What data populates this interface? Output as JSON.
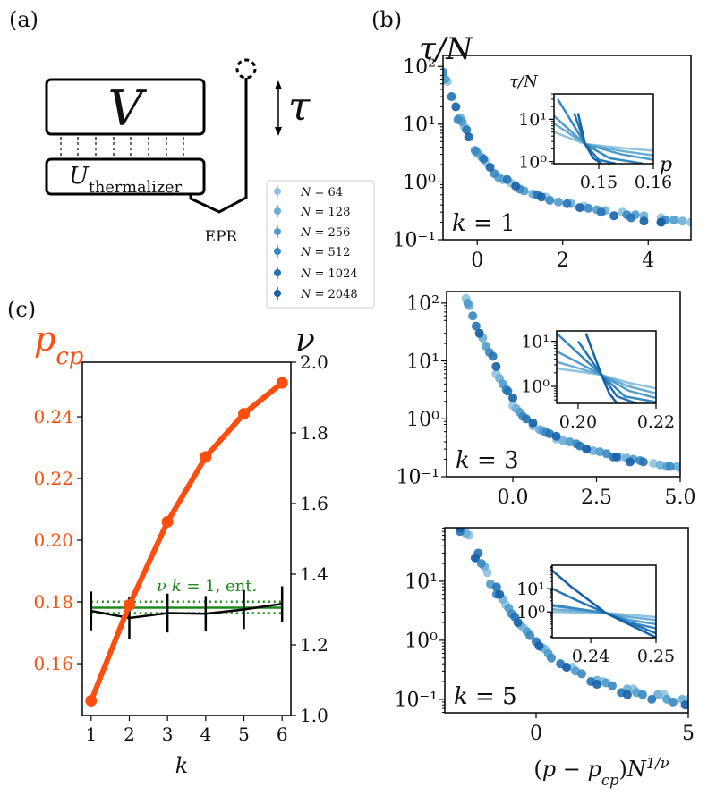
{
  "panel_labels": {
    "a": "(a)",
    "b": "(b)",
    "c": "(c)"
  },
  "diagram": {
    "V": "V",
    "U": [
      {
        "t": "U",
        "i": true
      },
      {
        "t": "thermalizer",
        "sub": true
      }
    ],
    "tau": "τ",
    "epr": "EPR"
  },
  "legend": [
    {
      "label": [
        {
          "t": "N",
          "i": true
        },
        {
          "t": " = 64"
        }
      ],
      "color": "#8fc2de"
    },
    {
      "label": [
        {
          "t": "N",
          "i": true
        },
        {
          "t": " = 128"
        }
      ],
      "color": "#6aaed6"
    },
    {
      "label": [
        {
          "t": "N",
          "i": true
        },
        {
          "t": " = 256"
        }
      ],
      "color": "#4f9bcb"
    },
    {
      "label": [
        {
          "t": "N",
          "i": true
        },
        {
          "t": " = 512"
        }
      ],
      "color": "#3787c0"
    },
    {
      "label": [
        {
          "t": "N",
          "i": true
        },
        {
          "t": " = 1024"
        }
      ],
      "color": "#2473b5"
    },
    {
      "label": [
        {
          "t": "N",
          "i": true
        },
        {
          "t": " = 2048"
        }
      ],
      "color": "#1561a9"
    }
  ],
  "chart_data": [
    {
      "type": "scatter",
      "panel": "b",
      "yscale": "log",
      "ylabel": [
        {
          "t": "τ/N",
          "i": true
        }
      ],
      "annotation": [
        {
          "t": "k",
          "i": true
        },
        {
          "t": " = 1"
        }
      ],
      "xlim": [
        -0.8,
        5.0
      ],
      "ylim": [
        0.1,
        155
      ],
      "xticks": [
        {
          "v": 0,
          "label": "0"
        },
        {
          "v": 2,
          "label": "2"
        },
        {
          "v": 4,
          "label": "4"
        }
      ],
      "yticks": [
        {
          "v": 100,
          "label": "10²"
        },
        {
          "v": 10,
          "label": "10¹"
        },
        {
          "v": 1,
          "label": "10⁰"
        },
        {
          "v": 0.1,
          "label": "10⁻¹"
        }
      ],
      "series": [
        {
          "x": [
            -0.7,
            -0.3,
            0.2,
            0.8,
            1.6,
            2.5,
            3.4,
            4.3,
            5.0
          ],
          "y": [
            55,
            9,
            2.2,
            0.95,
            0.55,
            0.38,
            0.3,
            0.24,
            0.2
          ]
        },
        {
          "x": [
            -0.8,
            -0.4,
            0.1,
            0.6,
            1.3,
            2.2,
            3.0,
            3.9,
            4.8
          ],
          "y": [
            70,
            13,
            2.7,
            1.1,
            0.62,
            0.42,
            0.32,
            0.26,
            0.21
          ]
        },
        {
          "x": [
            -0.75,
            -0.35,
            0.0,
            0.5,
            1.1,
            1.9,
            2.8,
            3.7,
            4.6
          ],
          "y": [
            60,
            11,
            3.2,
            1.2,
            0.7,
            0.45,
            0.33,
            0.27,
            0.22
          ]
        },
        {
          "x": [
            -0.8,
            -0.45,
            -0.05,
            0.4,
            1.0,
            1.7,
            2.6,
            3.5,
            4.4
          ],
          "y": [
            80,
            12,
            3.5,
            1.4,
            0.75,
            0.48,
            0.35,
            0.27,
            0.22
          ]
        },
        {
          "x": [
            -0.6,
            -0.25,
            0.15,
            0.7,
            1.4,
            2.1,
            2.9,
            3.6,
            4.3
          ],
          "y": [
            30,
            8,
            2.5,
            1.1,
            0.6,
            0.42,
            0.3,
            0.24,
            0.2
          ]
        },
        {
          "x": [
            -0.5,
            -0.2,
            0.3,
            0.9,
            1.5,
            2.4,
            3.2,
            3.9,
            4.3
          ],
          "y": [
            20,
            6,
            1.8,
            0.85,
            0.55,
            0.36,
            0.26,
            0.21,
            0.2
          ]
        }
      ]
    },
    {
      "type": "line",
      "panel": "b-inset",
      "yscale": "log",
      "ylabel": [
        {
          "t": "τ/N",
          "i": true
        }
      ],
      "xlabel": [
        {
          "t": "p",
          "i": true
        }
      ],
      "xlim": [
        0.1418,
        0.16
      ],
      "ylim": [
        0.89,
        40
      ],
      "xticks": [
        {
          "v": 0.15,
          "label": "0.15"
        },
        {
          "v": 0.16,
          "label": "0.16"
        }
      ],
      "yticks": [
        {
          "v": 10,
          "label": "10¹"
        },
        {
          "v": 1,
          "label": "10⁰"
        }
      ],
      "series": [
        {
          "x": [
            0.1418,
            0.1475,
            0.154,
            0.16
          ],
          "y": [
            5,
            2.6,
            2.1,
            1.8
          ]
        },
        {
          "x": [
            0.1418,
            0.1475,
            0.154,
            0.16
          ],
          "y": [
            8,
            2.6,
            1.8,
            1.4
          ]
        },
        {
          "x": [
            0.1418,
            0.1475,
            0.154,
            0.16
          ],
          "y": [
            12,
            2.6,
            1.5,
            1.1
          ]
        },
        {
          "x": [
            0.1425,
            0.1475,
            0.152,
            0.158
          ],
          "y": [
            30,
            2.6,
            1.2,
            0.9
          ]
        },
        {
          "x": [
            0.1455,
            0.1475,
            0.15,
            0.153
          ],
          "y": [
            14,
            2.6,
            1.1,
            0.9
          ]
        },
        {
          "x": [
            0.1462,
            0.1475,
            0.149,
            0.1505
          ],
          "y": [
            14,
            2.6,
            1.2,
            0.9
          ]
        }
      ]
    },
    {
      "type": "scatter",
      "panel": "b",
      "yscale": "log",
      "annotation": [
        {
          "t": "k",
          "i": true
        },
        {
          "t": " = 3"
        }
      ],
      "xlim": [
        -1.98,
        5.0
      ],
      "ylim": [
        0.1,
        158
      ],
      "xticks": [
        {
          "v": 0,
          "label": "0.0"
        },
        {
          "v": 2.5,
          "label": "2.5"
        },
        {
          "v": 5,
          "label": "5.0"
        }
      ],
      "yticks": [
        {
          "v": 100,
          "label": "10²"
        },
        {
          "v": 10,
          "label": "10¹"
        },
        {
          "v": 1,
          "label": "10⁰"
        },
        {
          "v": 0.1,
          "label": "10⁻¹"
        }
      ],
      "series": [
        {
          "x": [
            -1.4,
            -1.0,
            -0.5,
            0.0,
            0.6,
            1.3,
            2.2,
            3.2,
            4.2,
            5.0
          ],
          "y": [
            120,
            30,
            6,
            1.7,
            0.75,
            0.45,
            0.3,
            0.22,
            0.17,
            0.14
          ]
        },
        {
          "x": [
            -1.3,
            -0.9,
            -0.4,
            0.1,
            0.8,
            1.5,
            2.4,
            3.4,
            4.4,
            4.9
          ],
          "y": [
            90,
            25,
            5,
            1.5,
            0.65,
            0.42,
            0.28,
            0.21,
            0.16,
            0.15
          ]
        },
        {
          "x": [
            -1.35,
            -0.8,
            -0.3,
            0.2,
            0.9,
            1.7,
            2.6,
            3.6,
            4.6
          ],
          "y": [
            100,
            18,
            4,
            1.3,
            0.62,
            0.4,
            0.27,
            0.2,
            0.15
          ]
        },
        {
          "x": [
            -1.2,
            -0.7,
            -0.2,
            0.3,
            1.0,
            1.9,
            2.8,
            3.8,
            4.7
          ],
          "y": [
            60,
            14,
            3.2,
            1.1,
            0.58,
            0.37,
            0.25,
            0.19,
            0.15
          ]
        },
        {
          "x": [
            -1.1,
            -0.6,
            -0.15,
            0.4,
            1.1,
            2.0,
            3.0,
            3.9
          ],
          "y": [
            40,
            12,
            3,
            1.0,
            0.55,
            0.34,
            0.22,
            0.18
          ]
        },
        {
          "x": [
            -1.0,
            -0.5,
            0.0,
            0.6,
            1.3,
            2.2,
            3.1,
            3.5
          ],
          "y": [
            30,
            8,
            2.3,
            0.85,
            0.5,
            0.3,
            0.22,
            0.18
          ]
        }
      ]
    },
    {
      "type": "line",
      "panel": "b-inset",
      "yscale": "log",
      "xlim": [
        0.1945,
        0.22
      ],
      "ylim": [
        0.42,
        17
      ],
      "xticks": [
        {
          "v": 0.2,
          "label": "0.20"
        },
        {
          "v": 0.22,
          "label": "0.22"
        }
      ],
      "yticks": [
        {
          "v": 10,
          "label": "10¹"
        },
        {
          "v": 1,
          "label": "10⁰"
        }
      ],
      "series": [
        {
          "x": [
            0.1945,
            0.206,
            0.213,
            0.22
          ],
          "y": [
            2.5,
            1.8,
            1.2,
            0.9
          ]
        },
        {
          "x": [
            0.1945,
            0.206,
            0.213,
            0.22
          ],
          "y": [
            3.5,
            1.8,
            1.0,
            0.7
          ]
        },
        {
          "x": [
            0.1945,
            0.206,
            0.213,
            0.22
          ],
          "y": [
            6,
            1.8,
            0.8,
            0.55
          ]
        },
        {
          "x": [
            0.1945,
            0.206,
            0.212,
            0.22
          ],
          "y": [
            15,
            1.8,
            0.6,
            0.45
          ]
        },
        {
          "x": [
            0.2,
            0.206,
            0.21,
            0.215
          ],
          "y": [
            10,
            1.8,
            0.6,
            0.42
          ]
        },
        {
          "x": [
            0.202,
            0.206,
            0.208,
            0.21
          ],
          "y": [
            15,
            1.8,
            0.7,
            0.42
          ]
        }
      ]
    },
    {
      "type": "scatter",
      "panel": "b",
      "yscale": "log",
      "annotation": [
        {
          "t": "k",
          "i": true
        },
        {
          "t": " = 5"
        }
      ],
      "xlabel": [
        {
          "t": "(",
          "i": false
        },
        {
          "t": "p",
          "i": true
        },
        {
          "t": " − "
        },
        {
          "t": "p",
          "i": true
        },
        {
          "t": "cp",
          "i": true,
          "sub": true
        },
        {
          "t": ")"
        },
        {
          "t": "N",
          "i": true
        },
        {
          "t": "1/ν",
          "i": true,
          "sup": true
        }
      ],
      "xlim": [
        -3.0,
        5.0
      ],
      "ylim": [
        0.059,
        81
      ],
      "xticks": [
        {
          "v": 0,
          "label": "0"
        },
        {
          "v": 5,
          "label": "5"
        }
      ],
      "yticks": [
        {
          "v": 10,
          "label": "10¹"
        },
        {
          "v": 1,
          "label": "10⁰"
        },
        {
          "v": 0.1,
          "label": "10⁻¹"
        }
      ],
      "series": [
        {
          "x": [
            -2.2,
            -1.6,
            -1.0,
            -0.4,
            0.3,
            1.2,
            2.2,
            3.2,
            4.2,
            5.0
          ],
          "y": [
            60,
            14,
            4,
            1.6,
            0.7,
            0.35,
            0.2,
            0.15,
            0.12,
            0.1
          ]
        },
        {
          "x": [
            -2.3,
            -1.7,
            -1.1,
            -0.5,
            0.2,
            1.0,
            2.0,
            3.0,
            4.0,
            4.8
          ],
          "y": [
            65,
            18,
            5,
            1.8,
            0.75,
            0.35,
            0.21,
            0.15,
            0.12,
            0.1
          ]
        },
        {
          "x": [
            -2.0,
            -1.5,
            -0.9,
            -0.3,
            0.4,
            1.3,
            2.3,
            3.3,
            4.3
          ],
          "y": [
            25,
            9,
            3.5,
            1.4,
            0.6,
            0.3,
            0.19,
            0.13,
            0.1
          ]
        },
        {
          "x": [
            -1.8,
            -1.3,
            -0.8,
            -0.2,
            0.5,
            1.5,
            2.5,
            3.5,
            4.5
          ],
          "y": [
            20,
            6,
            2.8,
            1.2,
            0.5,
            0.27,
            0.17,
            0.12,
            0.09
          ]
        },
        {
          "x": [
            -2.5,
            -1.9,
            -1.3,
            -0.7,
            0.0,
            0.8,
            1.8,
            2.8,
            3.8
          ],
          "y": [
            70,
            30,
            8,
            2.5,
            0.95,
            0.4,
            0.2,
            0.13,
            0.1
          ]
        },
        {
          "x": [
            -2.5,
            -2.0,
            -1.2,
            -0.6,
            0.1,
            1.0,
            2.0,
            3.0,
            4.9
          ],
          "y": [
            80,
            25,
            6,
            2.0,
            0.8,
            0.35,
            0.18,
            0.12,
            0.08
          ]
        }
      ]
    },
    {
      "type": "line",
      "panel": "b-inset",
      "yscale": "log",
      "xlim": [
        0.2341,
        0.25
      ],
      "ylim": [
        0.079,
        100
      ],
      "xticks": [
        {
          "v": 0.24,
          "label": "0.24"
        },
        {
          "v": 0.25,
          "label": "0.25"
        }
      ],
      "yticks": [
        {
          "v": 10,
          "label": "10¹"
        },
        {
          "v": 1,
          "label": "10⁰"
        }
      ],
      "series": [
        {
          "x": [
            0.2341,
            0.2423,
            0.246,
            0.25
          ],
          "y": [
            1.0,
            0.9,
            0.75,
            0.6
          ]
        },
        {
          "x": [
            0.2341,
            0.2423,
            0.246,
            0.25
          ],
          "y": [
            1.3,
            0.9,
            0.6,
            0.45
          ]
        },
        {
          "x": [
            0.2341,
            0.2423,
            0.246,
            0.25
          ],
          "y": [
            1.8,
            0.9,
            0.45,
            0.3
          ]
        },
        {
          "x": [
            0.2341,
            0.2423,
            0.246,
            0.25
          ],
          "y": [
            2.0,
            0.9,
            0.35,
            0.2
          ]
        },
        {
          "x": [
            0.2341,
            0.238,
            0.2423,
            0.25
          ],
          "y": [
            10,
            3,
            0.9,
            0.12
          ]
        },
        {
          "x": [
            0.2341,
            0.237,
            0.2423,
            0.25
          ],
          "y": [
            60,
            12,
            0.9,
            0.08
          ]
        }
      ]
    },
    {
      "type": "line",
      "panel": "c",
      "xlabel": [
        {
          "t": "k",
          "i": true
        }
      ],
      "left_label": [
        {
          "t": "p",
          "i": true
        },
        {
          "t": "cp",
          "i": true,
          "sub": true
        }
      ],
      "right_label": [
        {
          "t": "ν",
          "i": true
        }
      ],
      "x": [
        1,
        2,
        3,
        4,
        5,
        6
      ],
      "xlim": [
        0.77,
        6.23
      ],
      "ylim_left": [
        0.1432,
        0.2577
      ],
      "ylim_right": [
        1.0,
        2.0
      ],
      "xticks": [
        {
          "v": 1,
          "label": "1"
        },
        {
          "v": 2,
          "label": "2"
        },
        {
          "v": 3,
          "label": "3"
        },
        {
          "v": 4,
          "label": "4"
        },
        {
          "v": 5,
          "label": "5"
        },
        {
          "v": 6,
          "label": "6"
        }
      ],
      "yticks_left": [
        {
          "v": 0.16,
          "label": "0.16"
        },
        {
          "v": 0.18,
          "label": "0.18"
        },
        {
          "v": 0.2,
          "label": "0.20"
        },
        {
          "v": 0.22,
          "label": "0.22"
        },
        {
          "v": 0.24,
          "label": "0.24"
        }
      ],
      "yticks_right": [
        {
          "v": 1.0,
          "label": "1.0"
        },
        {
          "v": 1.2,
          "label": "1.2"
        },
        {
          "v": 1.4,
          "label": "1.4"
        },
        {
          "v": 1.6,
          "label": "1.6"
        },
        {
          "v": 1.8,
          "label": "1.8"
        },
        {
          "v": 2.0,
          "label": "2.0"
        }
      ],
      "pcp": {
        "values": [
          0.148,
          0.179,
          0.206,
          0.227,
          0.241,
          0.251
        ],
        "color": "#fc4e0e"
      },
      "nu": {
        "values": [
          1.296,
          1.276,
          1.29,
          1.288,
          1.3,
          1.316
        ],
        "errors": [
          0.055,
          0.06,
          0.055,
          0.05,
          0.055,
          0.05
        ],
        "color": "#000000"
      },
      "reference": {
        "label": [
          {
            "t": "ν",
            "i": true
          },
          {
            "t": " "
          },
          {
            "t": "k",
            "i": true
          },
          {
            "t": " = 1, ent."
          }
        ],
        "value": 1.305,
        "band": [
          1.29,
          1.322
        ],
        "color": "#1a8a1a"
      }
    }
  ]
}
